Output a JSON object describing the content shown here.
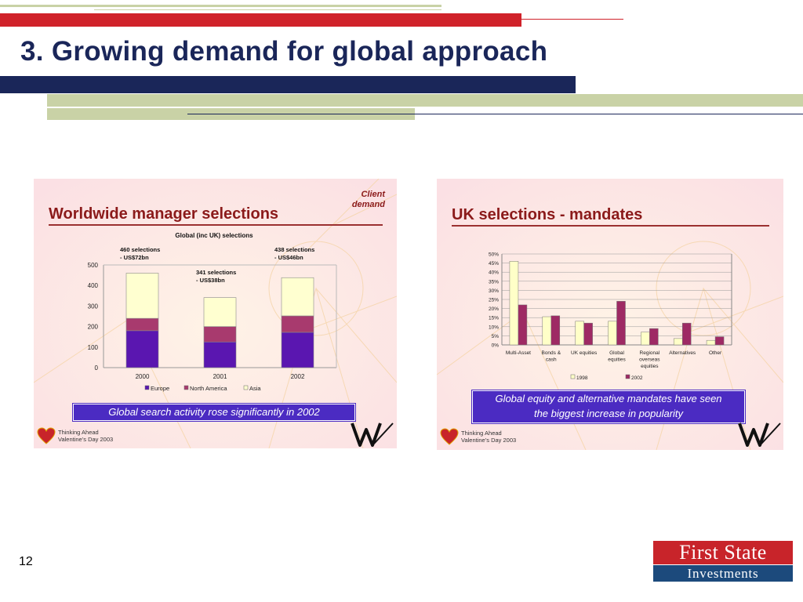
{
  "slide": {
    "title": "3. Growing demand for global approach",
    "page_number": "12"
  },
  "colors": {
    "navy": "#1a2659",
    "red": "#d0222a",
    "sage": "#c9d2a6",
    "europe": "#5a16b0",
    "north_america": "#a83a6e",
    "asia": "#ffffd0",
    "y1998": "#ffffc8",
    "y2002": "#9e2a64",
    "caption_bg": "#4b2bc2"
  },
  "left_panel": {
    "heading": "Worldwide manager selections",
    "client_demand": "Client demand",
    "caption": "Global search activity rose significantly in 2002",
    "footer_line1": "Thinking Ahead",
    "footer_line2": "Valentine’s Day 2003",
    "annotations": [
      {
        "line1": "460 selections",
        "line2": "- US$72bn"
      },
      {
        "line1": "341 selections",
        "line2": "- US$38bn"
      },
      {
        "line1": "438 selections",
        "line2": "- US$46bn"
      }
    ]
  },
  "right_panel": {
    "heading": "UK selections - mandates",
    "caption_line1": "Global equity and alternative mandates have seen",
    "caption_line2": "the biggest increase in popularity",
    "footer_line1": "Thinking Ahead",
    "footer_line2": "Valentine’s Day 2003"
  },
  "logo": {
    "line1": "First State",
    "line2": "Investments"
  },
  "chart_data": [
    {
      "type": "bar",
      "stacked": true,
      "title": "Global (inc UK) selections",
      "categories": [
        "2000",
        "2001",
        "2002"
      ],
      "series": [
        {
          "name": "Europe",
          "values": [
            180,
            125,
            172
          ]
        },
        {
          "name": "North America",
          "values": [
            60,
            75,
            80
          ]
        },
        {
          "name": "Asia",
          "values": [
            220,
            141,
            186
          ]
        }
      ],
      "ylim": [
        0,
        500
      ],
      "yticks": [
        "0",
        "100",
        "200",
        "300",
        "400",
        "500"
      ],
      "grid": false,
      "legend": "bottom"
    },
    {
      "type": "bar",
      "stacked": false,
      "title": "",
      "categories": [
        [
          "Multi-Asset"
        ],
        [
          "Bonds &",
          "cash"
        ],
        [
          "UK equities"
        ],
        [
          "Global",
          "equities"
        ],
        [
          "Regional",
          "overseas",
          "equities"
        ],
        [
          "Alternatives"
        ],
        [
          "Other"
        ]
      ],
      "series": [
        {
          "name": "1998",
          "values": [
            46,
            15.5,
            13,
            13,
            7,
            3.5,
            2.5
          ]
        },
        {
          "name": "2002",
          "values": [
            22,
            16,
            12,
            24,
            9,
            12,
            4.5
          ]
        }
      ],
      "ylim": [
        0,
        50
      ],
      "yticks": [
        "0%",
        "5%",
        "10%",
        "15%",
        "20%",
        "25%",
        "30%",
        "35%",
        "40%",
        "45%",
        "50%"
      ],
      "grid": true,
      "legend": "bottom"
    }
  ]
}
